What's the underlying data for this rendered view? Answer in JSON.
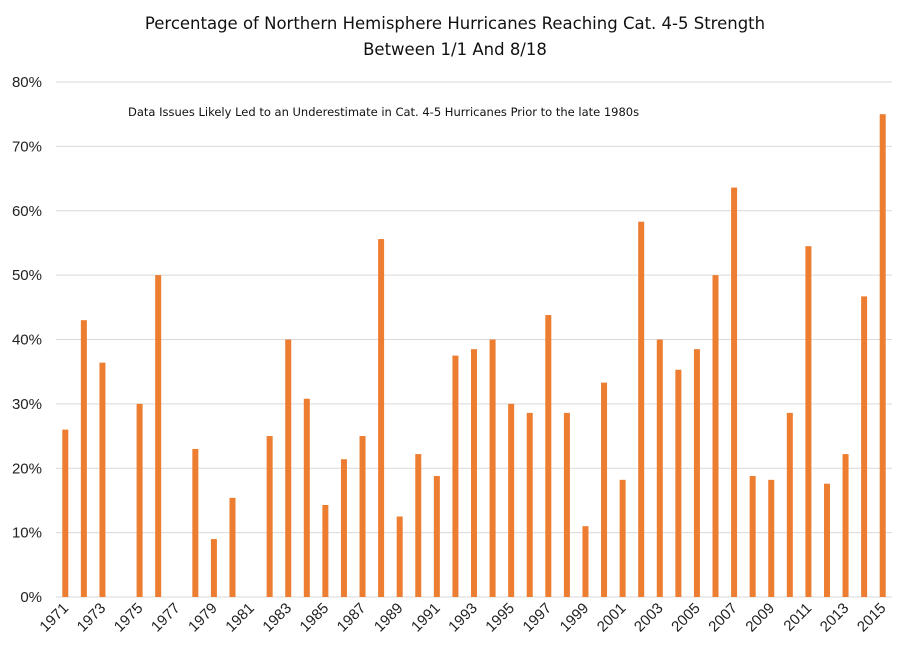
{
  "chart_data": {
    "type": "bar",
    "title": [
      "Percentage of Northern Hemisphere Hurricanes Reaching Cat. 4-5 Strength",
      "Between 1/1 And 8/18"
    ],
    "annotation": "Data Issues Likely Led to an Underestimate in Cat. 4-5 Hurricanes Prior to the late 1980s",
    "xlabel": "",
    "ylabel": "",
    "ylim": [
      0,
      0.8
    ],
    "yticks": [
      "0%",
      "10%",
      "20%",
      "30%",
      "40%",
      "50%",
      "60%",
      "70%",
      "80%"
    ],
    "grid": true,
    "bar_color": "#ED7D31",
    "categories": [
      "1971",
      "1972",
      "1973",
      "1974",
      "1975",
      "1976",
      "1977",
      "1978",
      "1979",
      "1980",
      "1981",
      "1982",
      "1983",
      "1984",
      "1985",
      "1986",
      "1987",
      "1988",
      "1989",
      "1990",
      "1991",
      "1992",
      "1993",
      "1994",
      "1995",
      "1996",
      "1997",
      "1998",
      "1999",
      "2000",
      "2001",
      "2002",
      "2003",
      "2004",
      "2005",
      "2006",
      "2007",
      "2008",
      "2009",
      "2010",
      "2011",
      "2012",
      "2013",
      "2014",
      "2015"
    ],
    "xtick_labels": [
      "1971",
      "",
      "1973",
      "",
      "1975",
      "",
      "1977",
      "",
      "1979",
      "",
      "1981",
      "",
      "1983",
      "",
      "1985",
      "",
      "1987",
      "",
      "1989",
      "",
      "1991",
      "",
      "1993",
      "",
      "1995",
      "",
      "1997",
      "",
      "1999",
      "",
      "2001",
      "",
      "2003",
      "",
      "2005",
      "",
      "2007",
      "",
      "2009",
      "",
      "2011",
      "",
      "2013",
      "",
      "2015"
    ],
    "values": [
      0.26,
      0.43,
      0.364,
      0,
      0.3,
      0.5,
      0,
      0.23,
      0.09,
      0.154,
      0,
      0.25,
      0.4,
      0.308,
      0.143,
      0.214,
      0.25,
      0.556,
      0.125,
      0.222,
      0.188,
      0.375,
      0.385,
      0.4,
      0.3,
      0.286,
      0.438,
      0.286,
      0.11,
      0.333,
      0.182,
      0.583,
      0.4,
      0.353,
      0.385,
      0.5,
      0.636,
      0.188,
      0.182,
      0.286,
      0.545,
      0.176,
      0.222,
      0.467,
      0.75
    ]
  }
}
